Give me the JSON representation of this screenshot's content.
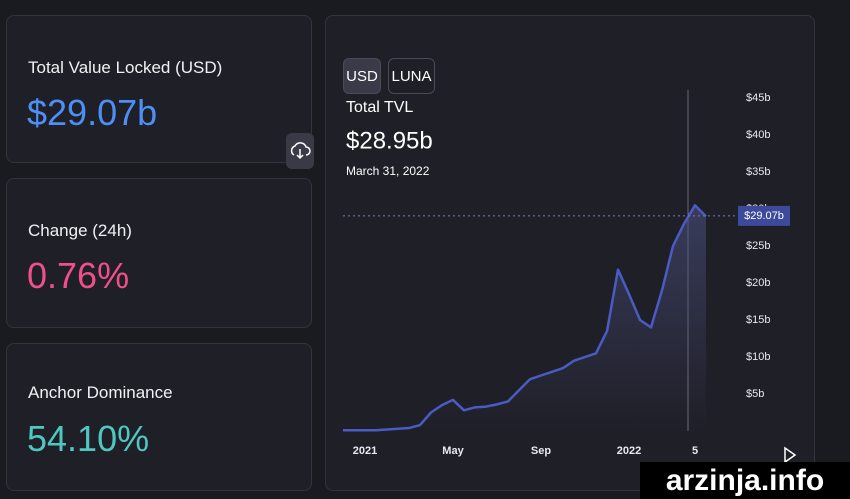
{
  "cards": [
    {
      "label": "Total Value Locked (USD)",
      "value": "$29.07b"
    },
    {
      "label": "Change (24h)",
      "value": "0.76%"
    },
    {
      "label": "Anchor Dominance",
      "value": "54.10%"
    }
  ],
  "buttons": [
    "USD",
    "LUNA"
  ],
  "chart_data": {
    "type": "area",
    "title": "Total TVL",
    "subtitle": "$28.95b",
    "annotation": "March 31, 2022",
    "categories": [
      null,
      null,
      "2021",
      null,
      null,
      null,
      null,
      null,
      null,
      null,
      "May",
      null,
      null,
      null,
      null,
      null,
      null,
      null,
      "Sep",
      null,
      null,
      null,
      null,
      null,
      null,
      null,
      "2022",
      null,
      null,
      null,
      null,
      null,
      "5",
      null
    ],
    "values": [
      0.1,
      0.1,
      0.1,
      0.1,
      0.2,
      0.3,
      0.4,
      0.8,
      2.5,
      3.5,
      4.2,
      2.8,
      3.2,
      3.3,
      3.6,
      4.0,
      5.5,
      7.0,
      7.5,
      8.0,
      8.5,
      9.5,
      10.0,
      10.5,
      13.5,
      21.8,
      18.5,
      15.0,
      14.0,
      19.0,
      25.0,
      28.0,
      30.5,
      29.0
    ],
    "color": "#4a5bc4",
    "ylim": [
      0,
      45
    ],
    "yticks": [
      {
        "value": 5,
        "label": "$5b"
      },
      {
        "value": 10,
        "label": "$10b"
      },
      {
        "value": 15,
        "label": "$15b"
      },
      {
        "value": 20,
        "label": "$20b"
      },
      {
        "value": 25,
        "label": "$25b"
      },
      {
        "value": 30,
        "label": "$30b"
      },
      {
        "value": 35,
        "label": "$35b"
      },
      {
        "value": 40,
        "label": "$40b"
      },
      {
        "value": 45,
        "label": "$45b"
      }
    ],
    "current": {
      "value": 29.07,
      "label": "$29.07b"
    }
  },
  "watermark": "arzinja.info"
}
